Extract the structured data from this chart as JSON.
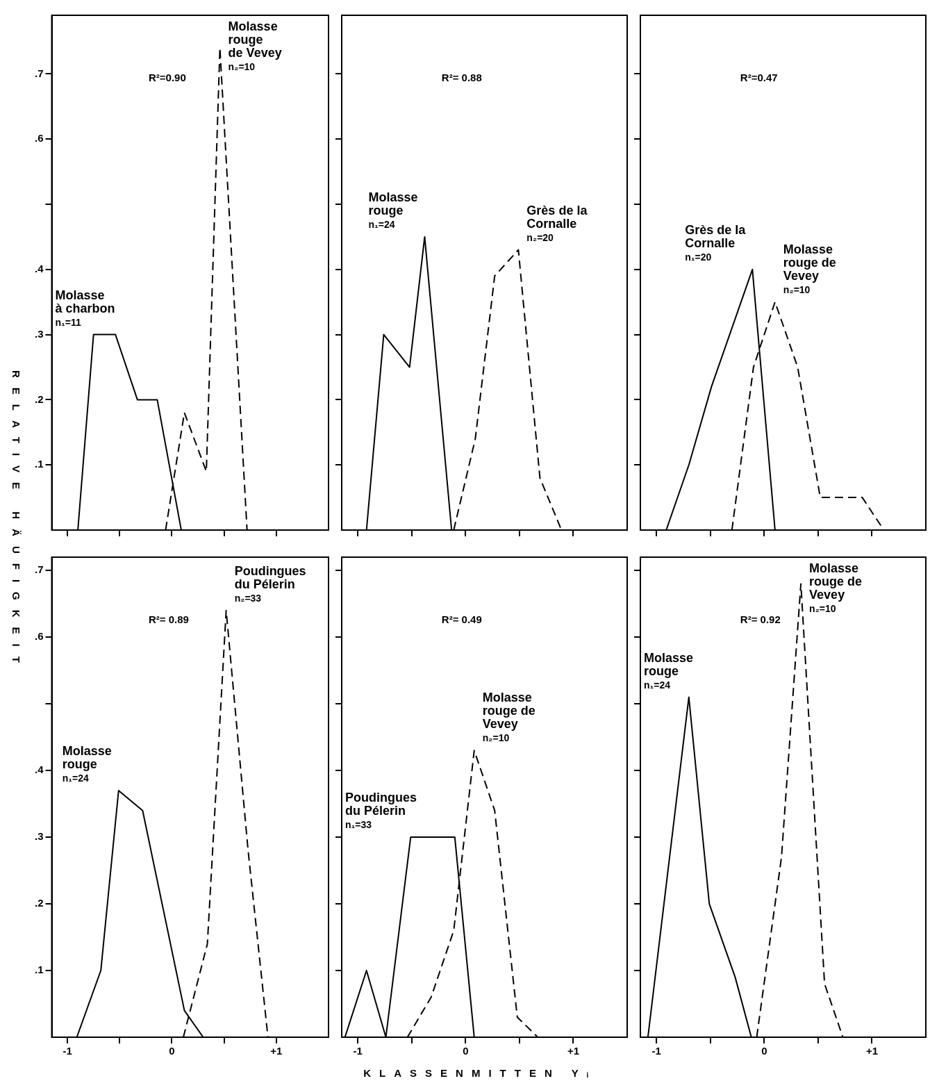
{
  "chart_data": [
    {
      "type": "line",
      "ylabel": "RELATIVE HÄUFIGKEIT",
      "annotations": [
        "R²=0.90"
      ],
      "xlim": [
        -1.15,
        1.5
      ],
      "ylim": [
        0,
        0.79
      ],
      "tick_labels": "y",
      "xticks": [
        {
          "value": -1,
          "label": null
        },
        {
          "value": -0.5,
          "label": null
        },
        {
          "value": 0,
          "label": null
        },
        {
          "value": 0.5,
          "label": null
        },
        {
          "value": 1,
          "label": null
        }
      ],
      "yticks": [
        {
          "value": 0.1,
          "label": ".1"
        },
        {
          "value": 0.2,
          "label": ".2"
        },
        {
          "value": 0.3,
          "label": ".3"
        },
        {
          "value": 0.4,
          "label": ".4"
        },
        {
          "value": 0.5,
          "label": null
        },
        {
          "value": 0.6,
          "label": ".6"
        },
        {
          "value": 0.7,
          "label": ".7"
        }
      ],
      "series": [
        {
          "name": "Molasse\nà charbon\nn₁=11",
          "color": "#000000",
          "line_style": "solid",
          "x": [
            -0.9,
            -0.75,
            -0.54,
            -0.33,
            -0.14,
            0.09
          ],
          "values": [
            0,
            0.3,
            0.3,
            0.2,
            0.2,
            0
          ]
        },
        {
          "name": "Molasse\nrouge\nde Vevey\nn₂=10",
          "color": "#000000",
          "line_style": "dashed",
          "x": [
            -0.06,
            0.12,
            0.33,
            0.46,
            0.72
          ],
          "values": [
            0,
            0.18,
            0.09,
            0.74,
            0
          ]
        }
      ]
    },
    {
      "type": "line",
      "annotations": [
        "R²= 0.88"
      ],
      "xlim": [
        -1.15,
        1.5
      ],
      "ylim": [
        0,
        0.79
      ],
      "tick_labels": false,
      "xticks": [
        {
          "value": -1,
          "label": null
        },
        {
          "value": -0.5,
          "label": null
        },
        {
          "value": 0,
          "label": null
        },
        {
          "value": 0.5,
          "label": null
        },
        {
          "value": 1,
          "label": null
        }
      ],
      "yticks": [
        {
          "value": 0.1,
          "label": null
        },
        {
          "value": 0.2,
          "label": null
        },
        {
          "value": 0.3,
          "label": null
        },
        {
          "value": 0.4,
          "label": null
        },
        {
          "value": 0.5,
          "label": null
        },
        {
          "value": 0.6,
          "label": null
        },
        {
          "value": 0.7,
          "label": null
        }
      ],
      "series": [
        {
          "name": "Molasse\nrouge\nn₁=24",
          "color": "#000000",
          "line_style": "solid",
          "x": [
            -0.92,
            -0.76,
            -0.52,
            -0.38,
            -0.13
          ],
          "values": [
            0,
            0.3,
            0.25,
            0.45,
            0
          ]
        },
        {
          "name": "Grès de la\nCornalle\nn₂=20",
          "color": "#000000",
          "line_style": "dashed",
          "x": [
            -0.11,
            0.09,
            0.27,
            0.49,
            0.69,
            0.89
          ],
          "values": [
            0,
            0.14,
            0.39,
            0.43,
            0.08,
            0
          ]
        }
      ]
    },
    {
      "type": "line",
      "annotations": [
        "R²=0.47"
      ],
      "xlim": [
        -1.15,
        1.5
      ],
      "ylim": [
        0,
        0.79
      ],
      "tick_labels": false,
      "xticks": [
        {
          "value": -1,
          "label": null
        },
        {
          "value": -0.5,
          "label": null
        },
        {
          "value": 0,
          "label": null
        },
        {
          "value": 0.5,
          "label": null
        },
        {
          "value": 1,
          "label": null
        }
      ],
      "yticks": [
        {
          "value": 0.1,
          "label": null
        },
        {
          "value": 0.2,
          "label": null
        },
        {
          "value": 0.3,
          "label": null
        },
        {
          "value": 0.4,
          "label": null
        },
        {
          "value": 0.5,
          "label": null
        },
        {
          "value": 0.6,
          "label": null
        },
        {
          "value": 0.7,
          "label": null
        }
      ],
      "series": [
        {
          "name": "Grès de la\nCornalle\nn₁=20",
          "color": "#000000",
          "line_style": "solid",
          "x": [
            -0.91,
            -0.7,
            -0.49,
            -0.11,
            0.1
          ],
          "values": [
            0,
            0.1,
            0.22,
            0.4,
            0
          ]
        },
        {
          "name": "Molasse\nrouge de\nVevey\nn₂=10",
          "color": "#000000",
          "line_style": "dashed",
          "x": [
            -0.3,
            -0.1,
            0.1,
            0.31,
            0.52,
            0.91,
            1.11
          ],
          "values": [
            0,
            0.25,
            0.35,
            0.25,
            0.05,
            0.05,
            0
          ]
        }
      ]
    },
    {
      "type": "line",
      "annotations": [
        "R²= 0.89"
      ],
      "xlim": [
        -1.15,
        1.5
      ],
      "ylim": [
        0,
        0.72
      ],
      "xticks": [
        {
          "value": -1,
          "label": "-1"
        },
        {
          "value": -0.5,
          "label": null
        },
        {
          "value": 0,
          "label": "0"
        },
        {
          "value": 0.5,
          "label": null
        },
        {
          "value": 1,
          "label": "+1"
        }
      ],
      "yticks": [
        {
          "value": 0.1,
          "label": ".1"
        },
        {
          "value": 0.2,
          "label": ".2"
        },
        {
          "value": 0.3,
          "label": ".3"
        },
        {
          "value": 0.4,
          "label": ".4"
        },
        {
          "value": 0.5,
          "label": null
        },
        {
          "value": 0.6,
          "label": ".6"
        },
        {
          "value": 0.7,
          "label": ".7"
        }
      ],
      "series": [
        {
          "name": "Molasse\nrouge\nn₁=24",
          "color": "#000000",
          "line_style": "solid",
          "x": [
            -0.91,
            -0.68,
            -0.51,
            -0.28,
            0.12,
            0.3
          ],
          "values": [
            0,
            0.1,
            0.37,
            0.34,
            0.04,
            0
          ]
        },
        {
          "name": "Poudingues\ndu Pélerin\nn₂=33",
          "color": "#000000",
          "line_style": "dashed",
          "x": [
            0.11,
            0.34,
            0.52,
            0.73,
            0.92
          ],
          "values": [
            0,
            0.14,
            0.64,
            0.28,
            0
          ]
        }
      ]
    },
    {
      "type": "line",
      "xlabel": "KLASSENMITTEN Yᵢ",
      "annotations": [
        "R²= 0.49"
      ],
      "xlim": [
        -1.15,
        1.5
      ],
      "ylim": [
        0,
        0.72
      ],
      "tick_labels": "x",
      "xticks": [
        {
          "value": -1,
          "label": "-1"
        },
        {
          "value": -0.5,
          "label": null
        },
        {
          "value": 0,
          "label": "0"
        },
        {
          "value": 0.5,
          "label": null
        },
        {
          "value": 1,
          "label": "+1"
        }
      ],
      "yticks": [
        {
          "value": 0.1,
          "label": null
        },
        {
          "value": 0.2,
          "label": null
        },
        {
          "value": 0.3,
          "label": null
        },
        {
          "value": 0.4,
          "label": null
        },
        {
          "value": 0.5,
          "label": null
        },
        {
          "value": 0.6,
          "label": null
        },
        {
          "value": 0.7,
          "label": null
        }
      ],
      "series": [
        {
          "name": "Poudingues\ndu Pélerin\nn₁=33",
          "color": "#000000",
          "line_style": "solid",
          "x": [
            -1.12,
            -0.92,
            -0.74,
            -0.51,
            -0.1,
            0.08
          ],
          "values": [
            0,
            0.1,
            0,
            0.3,
            0.3,
            0
          ]
        },
        {
          "name": "Molasse\nrouge de\nVevey\nn₂=10",
          "color": "#000000",
          "line_style": "dashed",
          "x": [
            -0.54,
            -0.32,
            -0.11,
            0.08,
            0.27,
            0.48,
            0.67
          ],
          "values": [
            0,
            0.06,
            0.16,
            0.43,
            0.34,
            0.03,
            0
          ]
        }
      ]
    },
    {
      "type": "line",
      "annotations": [
        "R²= 0.92"
      ],
      "xlim": [
        -1.15,
        1.5
      ],
      "ylim": [
        0,
        0.72
      ],
      "tick_labels": "x",
      "xticks": [
        {
          "value": -1,
          "label": "-1"
        },
        {
          "value": -0.5,
          "label": null
        },
        {
          "value": 0,
          "label": "0"
        },
        {
          "value": 0.5,
          "label": null
        },
        {
          "value": 1,
          "label": "+1"
        }
      ],
      "yticks": [
        {
          "value": 0.1,
          "label": null
        },
        {
          "value": 0.2,
          "label": null
        },
        {
          "value": 0.3,
          "label": null
        },
        {
          "value": 0.4,
          "label": null
        },
        {
          "value": 0.5,
          "label": null
        },
        {
          "value": 0.6,
          "label": null
        },
        {
          "value": 0.7,
          "label": null
        }
      ],
      "series": [
        {
          "name": "Molasse\nrouge\nn₁=24",
          "color": "#000000",
          "line_style": "solid",
          "x": [
            -1.08,
            -0.7,
            -0.51,
            -0.27,
            -0.12
          ],
          "values": [
            0,
            0.51,
            0.2,
            0.09,
            0
          ]
        },
        {
          "name": "Molasse\nrouge de\nVevey\nn₂=10",
          "color": "#000000",
          "line_style": "dashed",
          "x": [
            -0.07,
            0.16,
            0.34,
            0.56,
            0.73
          ],
          "values": [
            0,
            0.27,
            0.68,
            0.08,
            0
          ]
        }
      ]
    }
  ]
}
